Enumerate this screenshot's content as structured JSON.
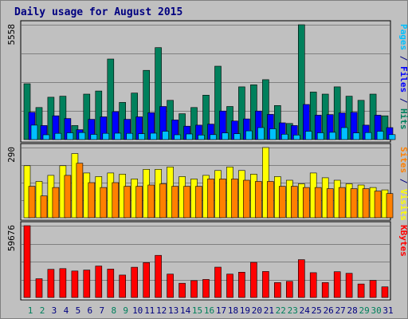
{
  "title": "Daily usage for August 2015",
  "colors": {
    "hits": "#00805c",
    "files": "#0000ff",
    "pages": "#00c0ff",
    "visits": "#ffff00",
    "sites": "#ff8000",
    "kbytes": "#ff0000",
    "weekend_day": "#00805c",
    "weekday": "#000080",
    "panel_bg": "#c0c0c0"
  },
  "chart_data": [
    {
      "type": "bar",
      "panel": "hits-files-pages",
      "scale_label": "5558",
      "ylim": [
        0,
        5558
      ],
      "ylabel_parts": [
        {
          "text": "Pages",
          "color": "#00c0ff"
        },
        {
          "text": " / ",
          "color": "#000080"
        },
        {
          "text": "Files",
          "color": "#0000ff"
        },
        {
          "text": " / ",
          "color": "#000080"
        },
        {
          "text": "Hits",
          "color": "#00805c"
        }
      ],
      "categories": [
        "1",
        "2",
        "3",
        "4",
        "5",
        "6",
        "7",
        "8",
        "9",
        "10",
        "11",
        "12",
        "13",
        "14",
        "15",
        "16",
        "17",
        "18",
        "19",
        "20",
        "21",
        "22",
        "23",
        "24",
        "25",
        "26",
        "27",
        "28",
        "29",
        "30",
        "31"
      ],
      "series": [
        {
          "name": "Hits",
          "values": [
            2700,
            1550,
            2050,
            2100,
            680,
            2200,
            2350,
            3900,
            1800,
            2250,
            3350,
            4450,
            1900,
            1250,
            1550,
            2150,
            3550,
            1600,
            2550,
            2650,
            2900,
            1650,
            780,
            5558,
            2300,
            2200,
            2550,
            2100,
            1900,
            2200,
            1150
          ]
        },
        {
          "name": "Files",
          "values": [
            1320,
            680,
            1150,
            1020,
            480,
            980,
            1100,
            1350,
            980,
            1100,
            1300,
            1600,
            950,
            650,
            700,
            750,
            1380,
            900,
            1000,
            1380,
            1220,
            810,
            680,
            1700,
            1180,
            1210,
            1290,
            1320,
            700,
            1180,
            580
          ]
        },
        {
          "name": "Pages",
          "values": [
            700,
            230,
            300,
            330,
            340,
            250,
            300,
            310,
            300,
            280,
            310,
            400,
            230,
            270,
            220,
            240,
            320,
            280,
            420,
            580,
            520,
            260,
            220,
            400,
            330,
            350,
            580,
            320,
            340,
            400,
            240
          ]
        }
      ]
    },
    {
      "type": "bar",
      "panel": "visits-sites",
      "scale_label": "290",
      "ylim": [
        0,
        290
      ],
      "ylabel_parts": [
        {
          "text": "Sites",
          "color": "#ff8000"
        },
        {
          "text": " / ",
          "color": "#000080"
        },
        {
          "text": "Visits",
          "color": "#ffff00"
        }
      ],
      "categories": [
        "1",
        "2",
        "3",
        "4",
        "5",
        "6",
        "7",
        "8",
        "9",
        "10",
        "11",
        "12",
        "13",
        "14",
        "15",
        "16",
        "17",
        "18",
        "19",
        "20",
        "21",
        "22",
        "23",
        "24",
        "25",
        "26",
        "27",
        "28",
        "29",
        "30",
        "31"
      ],
      "series": [
        {
          "name": "Visits",
          "values": [
            215,
            150,
            175,
            215,
            265,
            185,
            170,
            185,
            180,
            160,
            200,
            200,
            210,
            170,
            160,
            175,
            195,
            210,
            195,
            180,
            290,
            170,
            155,
            140,
            185,
            165,
            155,
            140,
            135,
            125,
            115
          ]
        },
        {
          "name": "Sites",
          "values": [
            130,
            90,
            125,
            175,
            225,
            145,
            125,
            145,
            130,
            130,
            135,
            140,
            130,
            130,
            130,
            160,
            160,
            160,
            155,
            150,
            150,
            130,
            130,
            125,
            125,
            120,
            125,
            120,
            120,
            110,
            100
          ]
        }
      ]
    },
    {
      "type": "bar",
      "panel": "kbytes",
      "scale_label": "59676",
      "ylim": [
        0,
        59676
      ],
      "ylabel_parts": [
        {
          "text": "KBytes",
          "color": "#ff0000"
        }
      ],
      "categories": [
        "1",
        "2",
        "3",
        "4",
        "5",
        "6",
        "7",
        "8",
        "9",
        "10",
        "11",
        "12",
        "13",
        "14",
        "15",
        "16",
        "17",
        "18",
        "19",
        "20",
        "21",
        "22",
        "23",
        "24",
        "25",
        "26",
        "27",
        "28",
        "29",
        "30",
        "31"
      ],
      "series": [
        {
          "name": "KBytes",
          "values": [
            59676,
            15600,
            23400,
            24000,
            22000,
            22800,
            26100,
            23600,
            18600,
            25100,
            29000,
            35000,
            19400,
            11800,
            14000,
            15000,
            25200,
            19400,
            21000,
            29200,
            21600,
            12400,
            13400,
            31400,
            20600,
            12400,
            21400,
            20100,
            11200,
            14200,
            8800
          ]
        }
      ]
    }
  ],
  "x_labels": [
    {
      "text": "1",
      "weekend": true
    },
    {
      "text": "2",
      "weekend": true
    },
    {
      "text": "3",
      "weekend": false
    },
    {
      "text": "4",
      "weekend": false
    },
    {
      "text": "5",
      "weekend": false
    },
    {
      "text": "6",
      "weekend": false
    },
    {
      "text": "7",
      "weekend": false
    },
    {
      "text": "8",
      "weekend": true
    },
    {
      "text": "9",
      "weekend": true
    },
    {
      "text": "10",
      "weekend": false
    },
    {
      "text": "11",
      "weekend": false
    },
    {
      "text": "12",
      "weekend": false
    },
    {
      "text": "13",
      "weekend": false
    },
    {
      "text": "14",
      "weekend": false
    },
    {
      "text": "15",
      "weekend": true
    },
    {
      "text": "16",
      "weekend": true
    },
    {
      "text": "17",
      "weekend": false
    },
    {
      "text": "18",
      "weekend": false
    },
    {
      "text": "19",
      "weekend": false
    },
    {
      "text": "20",
      "weekend": false
    },
    {
      "text": "21",
      "weekend": false
    },
    {
      "text": "22",
      "weekend": true
    },
    {
      "text": "23",
      "weekend": true
    },
    {
      "text": "24",
      "weekend": false
    },
    {
      "text": "25",
      "weekend": false
    },
    {
      "text": "26",
      "weekend": false
    },
    {
      "text": "27",
      "weekend": false
    },
    {
      "text": "28",
      "weekend": false
    },
    {
      "text": "29",
      "weekend": true
    },
    {
      "text": "30",
      "weekend": true
    },
    {
      "text": "31",
      "weekend": false
    }
  ]
}
